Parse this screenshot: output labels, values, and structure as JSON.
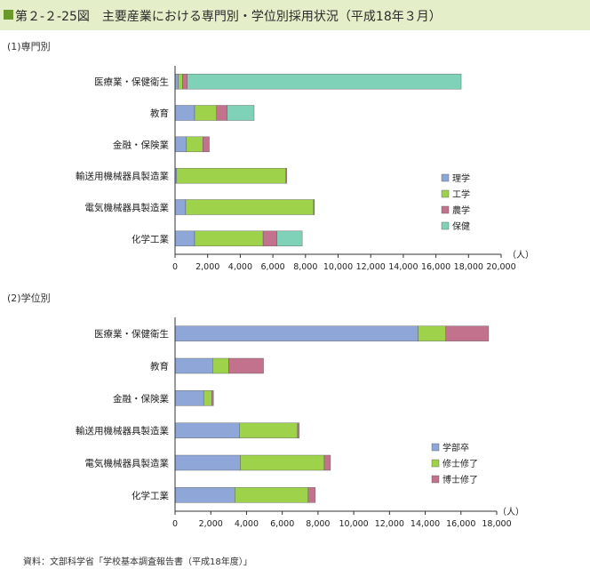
{
  "header": {
    "figure_number": "第２-２-25図",
    "title": "主要産業における専門別・学位別採用状況（平成18年３月）"
  },
  "source_note": "資料：文部科学省「学校基本調査報告書（平成18年度）」",
  "colors": {
    "header_bg": "#e4efc9",
    "title_mark": "#6b9a2a",
    "rigaku": "#8ea6d8",
    "kougaku": "#9ed24a",
    "nougaku": "#c2728c",
    "hoken": "#7fd2b8",
    "gakubu": "#8ea6d8",
    "shushi": "#9ed24a",
    "hakushi": "#c2728c"
  },
  "chart_data": [
    {
      "type": "bar",
      "orientation": "horizontal",
      "stacked": true,
      "title": "(1)専門別",
      "categories": [
        "医療業・保健衛生",
        "教育",
        "金融・保険業",
        "輸送用機械器具製造業",
        "電気機械器具製造業",
        "化学工業"
      ],
      "series": [
        {
          "name": "理学",
          "color": "#8ea6d8",
          "values": [
            200,
            1200,
            700,
            100,
            650,
            1200
          ]
        },
        {
          "name": "工学",
          "color": "#9ed24a",
          "values": [
            250,
            1350,
            1000,
            6700,
            7850,
            4200
          ]
        },
        {
          "name": "農学",
          "color": "#c2728c",
          "values": [
            300,
            650,
            400,
            50,
            50,
            850
          ]
        },
        {
          "name": "保健",
          "color": "#7fd2b8",
          "values": [
            16800,
            1650,
            0,
            0,
            0,
            1550
          ]
        }
      ],
      "xlim": [
        0,
        20000
      ],
      "xticks": [
        "0",
        "2,000",
        "4,000",
        "6,000",
        "8,000",
        "10,000",
        "12,000",
        "14,000",
        "16,000",
        "18,000",
        "20,000"
      ],
      "unit": "（人）",
      "grid": false,
      "legend_position": "right"
    },
    {
      "type": "bar",
      "orientation": "horizontal",
      "stacked": true,
      "title": "(2)学位別",
      "categories": [
        "医療業・保健衛生",
        "教育",
        "金融・保険業",
        "輸送用機械器具製造業",
        "電気機械器具製造業",
        "化学工業"
      ],
      "series": [
        {
          "name": "学部卒",
          "color": "#8ea6d8",
          "values": [
            13600,
            2100,
            1600,
            3600,
            3650,
            3350
          ]
        },
        {
          "name": "修士修了",
          "color": "#9ed24a",
          "values": [
            1550,
            900,
            450,
            3250,
            4700,
            4100
          ]
        },
        {
          "name": "博士修了",
          "color": "#c2728c",
          "values": [
            2400,
            1950,
            100,
            100,
            350,
            400
          ]
        }
      ],
      "xlim": [
        0,
        18000
      ],
      "xticks": [
        "0",
        "2,000",
        "4,000",
        "6,000",
        "8,000",
        "10,000",
        "12,000",
        "14,000",
        "16,000",
        "18,000"
      ],
      "unit": "（人）",
      "grid": false,
      "legend_position": "right"
    }
  ]
}
